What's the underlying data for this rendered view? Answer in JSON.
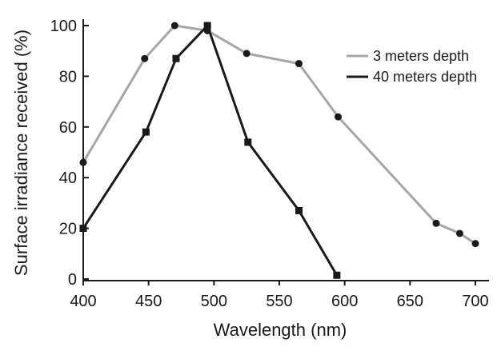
{
  "chart_data": {
    "type": "line",
    "xlabel": "Wavelength (nm)",
    "ylabel": "Surface irradiance received (%)",
    "xlim": [
      400,
      700
    ],
    "ylim": [
      0,
      100
    ],
    "xticks": [
      400,
      450,
      500,
      550,
      600,
      650,
      700
    ],
    "yticks": [
      0,
      20,
      40,
      60,
      80,
      100
    ],
    "grid": false,
    "legend_position": "top-right",
    "series": [
      {
        "name": "3 meters depth",
        "color": "#a6a6a6",
        "marker": "circle",
        "x": [
          400,
          447,
          470,
          495,
          525,
          565,
          595,
          670,
          688,
          700
        ],
        "y": [
          46,
          87,
          100,
          98,
          89,
          85,
          64,
          22,
          18,
          14
        ]
      },
      {
        "name": "40 meters depth",
        "color": "#1a1a1a",
        "marker": "square",
        "x": [
          400,
          448,
          471,
          495,
          526,
          565,
          594
        ],
        "y": [
          20,
          58,
          87,
          100,
          54,
          27,
          1.5
        ]
      }
    ]
  }
}
